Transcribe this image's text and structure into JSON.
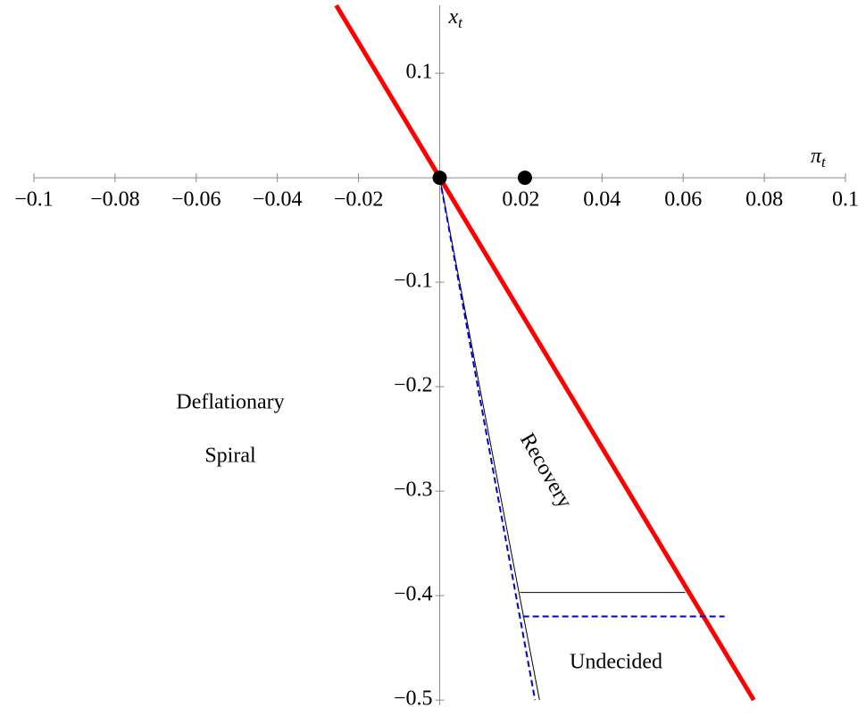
{
  "chart_data": {
    "type": "line",
    "xlabel": [
      "π",
      "t"
    ],
    "ylabel": [
      "x",
      "t"
    ],
    "xlim": [
      -0.1,
      0.1
    ],
    "ylim": [
      -0.505,
      0.165
    ],
    "xticks": [
      {
        "value": -0.1,
        "label": "−0.1"
      },
      {
        "value": -0.08,
        "label": "−0.08"
      },
      {
        "value": -0.06,
        "label": "−0.06"
      },
      {
        "value": -0.04,
        "label": "−0.04"
      },
      {
        "value": -0.02,
        "label": "−0.02"
      },
      0.02,
      0.04,
      0.06,
      0.08,
      0.1
    ],
    "yticks": [
      0.1,
      {
        "value": -0.1,
        "label": "−0.1"
      },
      {
        "value": -0.2,
        "label": "−0.2"
      },
      {
        "value": -0.3,
        "label": "−0.3"
      },
      {
        "value": -0.4,
        "label": "−0.4"
      },
      {
        "value": -0.5,
        "label": "−0.5"
      }
    ],
    "series": [
      {
        "color": "#ff0000",
        "style": "solid",
        "width": 5,
        "x": [
          -0.0255,
          0.0774
        ],
        "values": [
          0.165,
          -0.5
        ]
      },
      {
        "color": "#000000",
        "style": "solid",
        "width": 1,
        "x": [
          0,
          0.0246
        ],
        "values": [
          0,
          -0.5
        ]
      },
      {
        "color": "#0000dd",
        "style": "dashed",
        "width": 2,
        "x": [
          0,
          0.0235
        ],
        "values": [
          0,
          -0.5
        ]
      },
      {
        "color": "#000000",
        "style": "solid",
        "width": 1,
        "x": [
          0.0198,
          0.0605
        ],
        "values": [
          -0.397,
          -0.397
        ]
      },
      {
        "color": "#0000dd",
        "style": "dashed",
        "width": 2,
        "x": [
          0.0205,
          0.0702
        ],
        "values": [
          -0.42,
          -0.42
        ]
      }
    ],
    "points": {
      "color": "#000000",
      "x": [
        0,
        0.021
      ],
      "values": [
        0,
        0
      ]
    },
    "annotations": [
      "Deflationary",
      "Spiral",
      "Recovery",
      "Undecided"
    ]
  }
}
